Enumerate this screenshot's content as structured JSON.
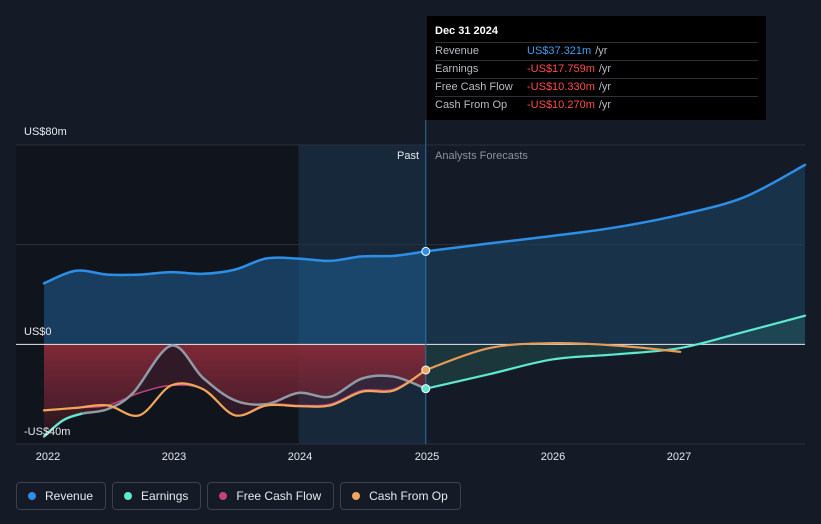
{
  "tooltip": {
    "date": "Dec 31 2024",
    "rows": [
      {
        "name": "Revenue",
        "value": "US$37.321m",
        "unit": "/yr",
        "color": "#3fa0ef"
      },
      {
        "name": "Earnings",
        "value": "-US$17.759m",
        "unit": "/yr",
        "color": "#ff4d4d"
      },
      {
        "name": "Free Cash Flow",
        "value": "-US$10.330m",
        "unit": "/yr",
        "color": "#ff4d4d"
      },
      {
        "name": "Cash From Op",
        "value": "-US$10.270m",
        "unit": "/yr",
        "color": "#ff4d4d"
      }
    ]
  },
  "regions": {
    "past": "Past",
    "forecast": "Analysts Forecasts"
  },
  "legend": [
    {
      "name": "Revenue",
      "color": "#2d8ee6"
    },
    {
      "name": "Earnings",
      "color": "#5ee8cf"
    },
    {
      "name": "Free Cash Flow",
      "color": "#c2427c"
    },
    {
      "name": "Cash From Op",
      "color": "#f2a65a"
    }
  ],
  "chart_data": {
    "type": "line",
    "yticks": [
      {
        "label": "US$80m",
        "value": 80
      },
      {
        "label": "US$0",
        "value": 0
      },
      {
        "label": "-US$40m",
        "value": -40
      }
    ],
    "xticks": [
      "2022",
      "2023",
      "2024",
      "2025",
      "2026",
      "2027"
    ],
    "ylim": [
      -40,
      80
    ],
    "xlim": [
      2021.78,
      2027.98
    ],
    "divider": 2025.0,
    "highlight_start": 2024.0,
    "series": [
      {
        "name": "Revenue",
        "color": "#2d8ee6",
        "fill": true,
        "x": [
          2022.0,
          2022.25,
          2022.5,
          2022.75,
          2023.0,
          2023.25,
          2023.5,
          2023.75,
          2024.0,
          2024.25,
          2024.5,
          2024.75,
          2025.0
        ],
        "y": [
          24.5,
          29.5,
          28.0,
          28.0,
          29.0,
          28.3,
          30.0,
          34.5,
          34.4,
          33.5,
          35.3,
          35.5,
          37.3
        ]
      },
      {
        "name": "Revenue forecast",
        "color": "#2d8ee6",
        "fill": true,
        "x": [
          2025.0,
          2025.5,
          2026.0,
          2026.5,
          2027.0,
          2027.5,
          2027.98
        ],
        "y": [
          37.3,
          40.5,
          43.5,
          47.0,
          52.0,
          59.0,
          72.0
        ]
      },
      {
        "name": "Earnings",
        "color": "#5ee8cf",
        "fill": false,
        "x": [
          2022.0,
          2022.15,
          2022.3,
          2022.5,
          2022.7,
          2023.0,
          2023.25,
          2023.5,
          2023.75,
          2024.0,
          2024.25,
          2024.5,
          2024.75,
          2025.0
        ],
        "y": [
          -37.0,
          -30.5,
          -27.8,
          -26.0,
          -19.5,
          -0.5,
          -13.5,
          -22.5,
          -24.0,
          -19.5,
          -21.0,
          -13.7,
          -13.0,
          -17.8
        ]
      },
      {
        "name": "Earnings forecast",
        "color": "#5ee8cf",
        "fill": false,
        "x": [
          2025.0,
          2025.5,
          2026.0,
          2026.5,
          2027.0,
          2027.5,
          2027.98
        ],
        "y": [
          -17.8,
          -12.0,
          -6.0,
          -4.0,
          -1.5,
          5.0,
          11.5
        ]
      },
      {
        "name": "Free Cash Flow",
        "color": "#c2427c",
        "fill": true,
        "x": [
          2022.0,
          2022.25,
          2022.5,
          2022.75,
          2023.0,
          2023.25,
          2023.5,
          2023.75,
          2024.0,
          2024.25,
          2024.5,
          2024.75,
          2025.0
        ],
        "y": [
          -26.5,
          -25.5,
          -24.5,
          -19.5,
          -16.5,
          -18.0,
          -28.5,
          -24.0,
          -24.5,
          -24.0,
          -18.5,
          -18.0,
          -10.3
        ]
      },
      {
        "name": "Cash From Op",
        "color": "#f2a65a",
        "fill": false,
        "x": [
          2022.0,
          2022.25,
          2022.5,
          2022.75,
          2023.0,
          2023.25,
          2023.5,
          2023.75,
          2024.0,
          2024.25,
          2024.5,
          2024.75,
          2025.0
        ],
        "y": [
          -26.5,
          -25.5,
          -24.5,
          -28.5,
          -16.5,
          -18.0,
          -28.5,
          -24.5,
          -24.8,
          -24.5,
          -19.0,
          -18.5,
          -10.3
        ]
      },
      {
        "name": "Cash From Op forecast",
        "color": "#f2a65a",
        "fill": false,
        "x": [
          2025.0,
          2025.5,
          2026.0,
          2026.5,
          2027.0
        ],
        "y": [
          -10.3,
          -1.5,
          0.5,
          -0.5,
          -3.0
        ]
      }
    ]
  }
}
